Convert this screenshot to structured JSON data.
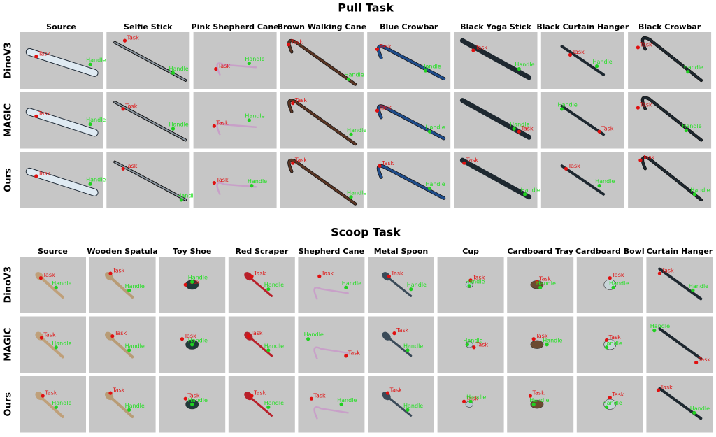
{
  "sections": [
    {
      "title": "Pull Task",
      "columns": [
        "Source",
        "Selfie Stick",
        "Pink Shepherd Cane",
        "Brown Walking Cane",
        "Blue Crowbar",
        "Black Yoga Stick",
        "Black Curtain Hanger",
        "Black Crowbar"
      ],
      "rows": [
        "DinoV3",
        "MAGIC",
        "Ours"
      ]
    },
    {
      "title": "Scoop Task",
      "columns": [
        "Source",
        "Wooden Spatula",
        "Toy Shoe",
        "Red Scraper",
        "Shepherd Cane",
        "Metal Spoon",
        "Cup",
        "Cardboard Tray",
        "Cardboard Bowl",
        "Curtain Hanger"
      ],
      "rows": [
        "DinoV3",
        "MAGIC",
        "Ours"
      ]
    }
  ],
  "keypoints": {
    "task": "Task",
    "handle": "Handle"
  }
}
